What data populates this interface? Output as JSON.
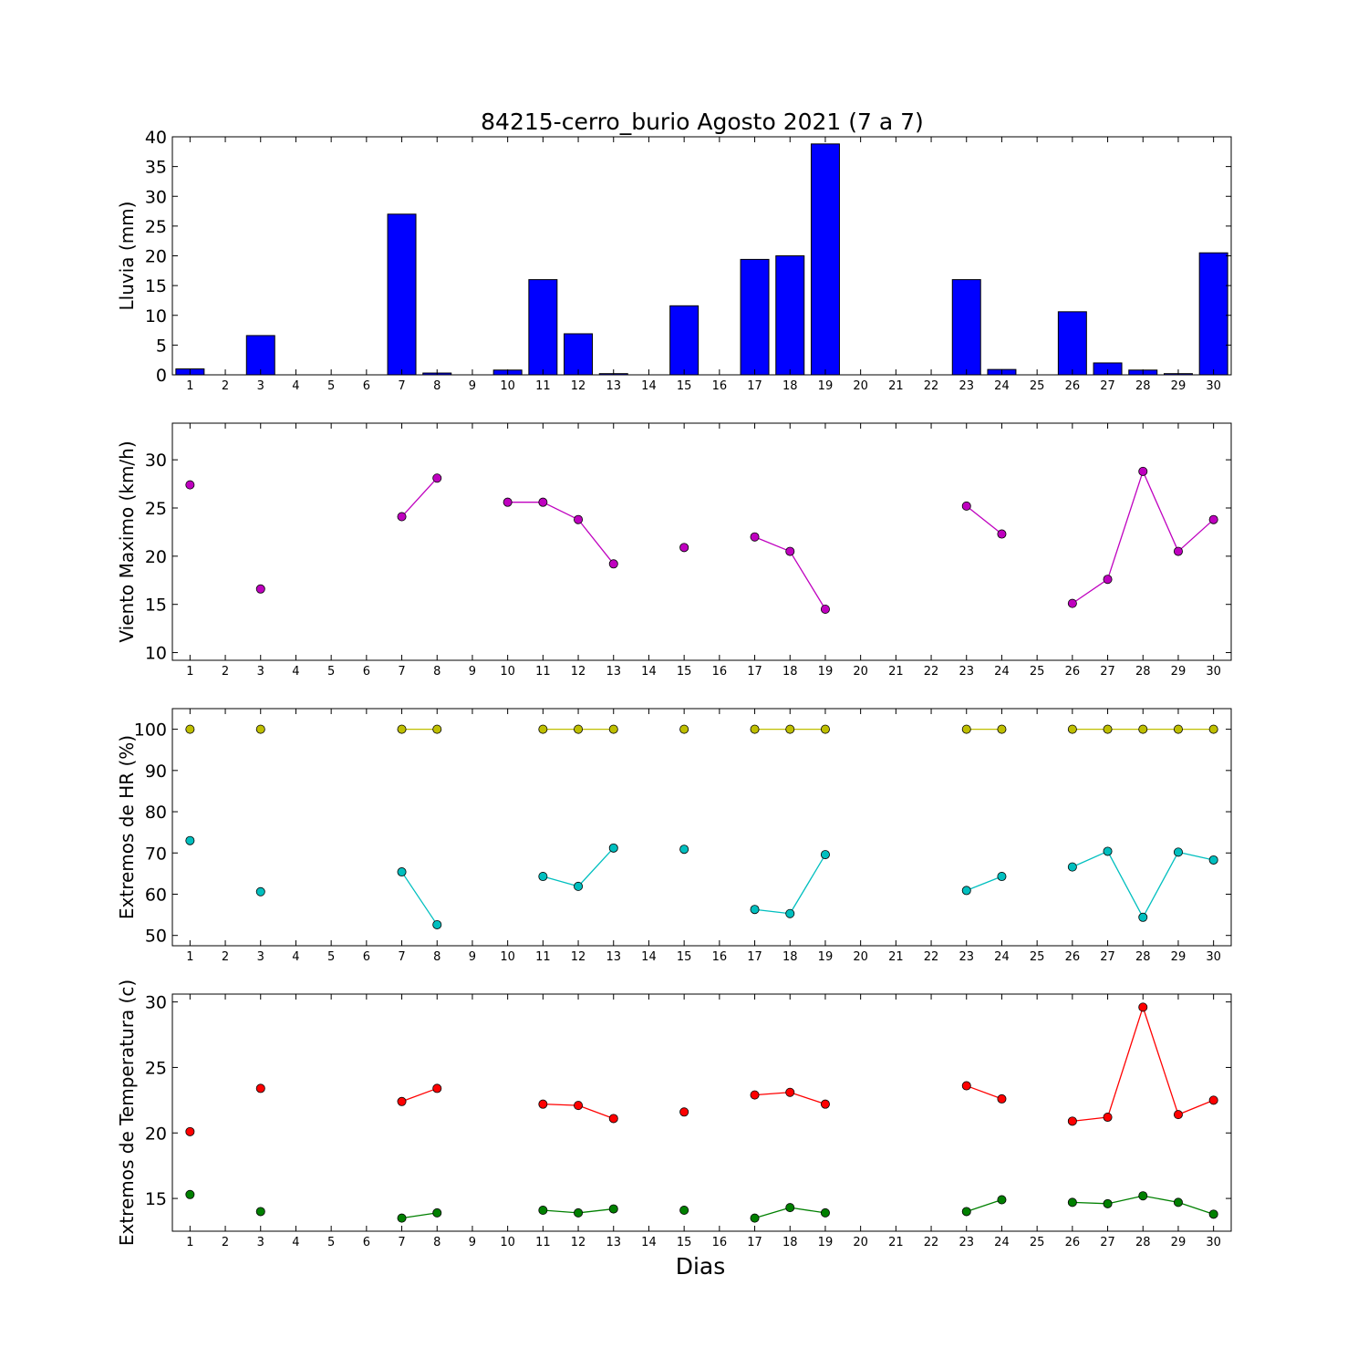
{
  "title": "84215-cerro_burio Agosto 2021  (7 a 7)",
  "xlabel": "Dias",
  "chart_data": [
    {
      "type": "bar",
      "ylabel": "Lluvia (mm)",
      "ylim": [
        0,
        40
      ],
      "yticks": [
        0,
        5,
        10,
        15,
        20,
        25,
        30,
        35,
        40
      ],
      "xlim": [
        0.5,
        30.5
      ],
      "x": [
        1,
        2,
        3,
        4,
        5,
        6,
        7,
        8,
        9,
        10,
        11,
        12,
        13,
        14,
        15,
        16,
        17,
        18,
        19,
        20,
        21,
        22,
        23,
        24,
        25,
        26,
        27,
        28,
        29,
        30
      ],
      "series": [
        {
          "color": "#0000ff",
          "values": [
            1.0,
            0,
            6.6,
            0,
            0,
            0,
            27.0,
            0.3,
            0,
            0.8,
            16.0,
            6.9,
            0.2,
            0,
            11.6,
            0,
            19.4,
            20.0,
            38.8,
            0,
            0,
            0,
            16.0,
            0.9,
            0,
            10.6,
            2.0,
            0.8,
            0.2,
            20.5
          ]
        }
      ]
    },
    {
      "type": "line",
      "ylabel": "Viento Maximo (km/h)",
      "ylim": [
        9.2,
        33.8
      ],
      "yticks": [
        10,
        15,
        20,
        25,
        30
      ],
      "xlim": [
        0.5,
        30.5
      ],
      "x": [
        1,
        2,
        3,
        4,
        5,
        6,
        7,
        8,
        9,
        10,
        11,
        12,
        13,
        14,
        15,
        16,
        17,
        18,
        19,
        20,
        21,
        22,
        23,
        24,
        25,
        26,
        27,
        28,
        29,
        30
      ],
      "series": [
        {
          "color": "#bf00bf",
          "values": [
            27.4,
            null,
            16.6,
            null,
            null,
            null,
            24.1,
            28.1,
            null,
            25.6,
            25.6,
            23.8,
            19.2,
            null,
            20.9,
            null,
            22.0,
            20.5,
            14.5,
            null,
            null,
            null,
            25.2,
            22.3,
            null,
            15.1,
            17.6,
            28.8,
            20.5,
            23.8
          ]
        }
      ]
    },
    {
      "type": "line",
      "ylabel": "Extremos de HR (%)",
      "ylim": [
        47.5,
        105
      ],
      "yticks": [
        50,
        60,
        70,
        80,
        90,
        100
      ],
      "xlim": [
        0.5,
        30.5
      ],
      "x": [
        1,
        2,
        3,
        4,
        5,
        6,
        7,
        8,
        9,
        10,
        11,
        12,
        13,
        14,
        15,
        16,
        17,
        18,
        19,
        20,
        21,
        22,
        23,
        24,
        25,
        26,
        27,
        28,
        29,
        30
      ],
      "series": [
        {
          "color": "#bfbf00",
          "values": [
            100,
            null,
            100,
            null,
            null,
            null,
            100,
            100,
            null,
            null,
            100,
            100,
            100,
            null,
            100,
            null,
            100,
            100,
            100,
            null,
            null,
            null,
            100,
            100,
            null,
            100,
            100,
            100,
            100,
            100
          ]
        },
        {
          "color": "#00bfbf",
          "values": [
            73.0,
            null,
            60.6,
            null,
            null,
            null,
            65.4,
            52.6,
            null,
            null,
            64.3,
            61.9,
            71.2,
            null,
            70.9,
            null,
            56.3,
            55.3,
            69.6,
            null,
            null,
            null,
            60.9,
            64.3,
            null,
            66.6,
            70.4,
            54.4,
            70.2,
            68.3
          ]
        }
      ]
    },
    {
      "type": "line",
      "ylabel": "Extremos de Temperatura (c)",
      "ylim": [
        12.5,
        30.6
      ],
      "yticks": [
        15,
        20,
        25,
        30
      ],
      "xlim": [
        0.5,
        30.5
      ],
      "x": [
        1,
        2,
        3,
        4,
        5,
        6,
        7,
        8,
        9,
        10,
        11,
        12,
        13,
        14,
        15,
        16,
        17,
        18,
        19,
        20,
        21,
        22,
        23,
        24,
        25,
        26,
        27,
        28,
        29,
        30
      ],
      "series": [
        {
          "color": "#ff0000",
          "values": [
            20.1,
            null,
            23.4,
            null,
            null,
            null,
            22.4,
            23.4,
            null,
            null,
            22.2,
            22.1,
            21.1,
            null,
            21.6,
            null,
            22.9,
            23.1,
            22.2,
            null,
            null,
            null,
            23.6,
            22.6,
            null,
            20.9,
            21.2,
            29.6,
            21.4,
            22.5
          ]
        },
        {
          "color": "#008000",
          "values": [
            15.3,
            null,
            14.0,
            null,
            null,
            null,
            13.5,
            13.9,
            null,
            null,
            14.1,
            13.9,
            14.2,
            null,
            14.1,
            null,
            13.5,
            14.3,
            13.9,
            null,
            null,
            null,
            14.0,
            14.9,
            null,
            14.7,
            14.6,
            15.2,
            14.7,
            13.8
          ]
        }
      ]
    }
  ]
}
